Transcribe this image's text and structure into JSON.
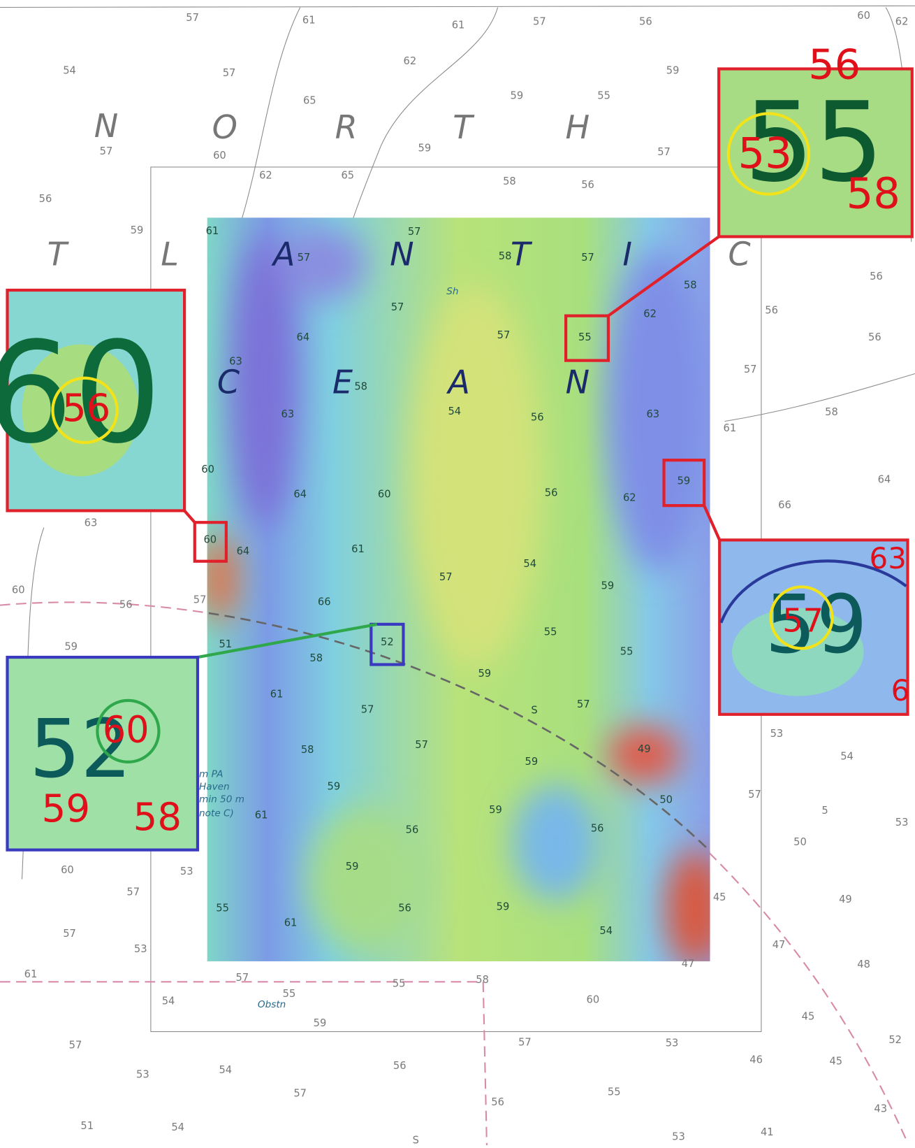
{
  "map": {
    "ocean_letters": [
      "N",
      "O",
      "R",
      "T",
      "H",
      "T",
      "L",
      "A",
      "N",
      "T",
      "I",
      "C",
      "C",
      "E",
      "A",
      "N"
    ],
    "soundings": [
      "57",
      "61",
      "61",
      "57",
      "56",
      "60",
      "62",
      "54",
      "57",
      "62",
      "59",
      "65",
      "59",
      "55",
      "57",
      "60",
      "59",
      "57",
      "62",
      "65",
      "58",
      "56",
      "56",
      "59",
      "61",
      "57",
      "57",
      "58",
      "57",
      "58",
      "56",
      "57",
      "57",
      "55",
      "62",
      "56",
      "56",
      "64",
      "63",
      "58",
      "57",
      "54",
      "56",
      "63",
      "58",
      "61",
      "63",
      "60",
      "64",
      "60",
      "56",
      "59",
      "62",
      "64",
      "66",
      "63",
      "60",
      "64",
      "61",
      "54",
      "57",
      "59",
      "60",
      "56",
      "57",
      "66",
      "52",
      "55",
      "59",
      "51",
      "58",
      "55",
      "59",
      "61",
      "57",
      "S",
      "57",
      "53",
      "54",
      "57",
      "58",
      "49",
      "59",
      "59",
      "50",
      "57",
      "5",
      "53",
      "59",
      "61",
      "56",
      "56",
      "50",
      "60",
      "53",
      "59",
      "57",
      "45",
      "49",
      "55",
      "56",
      "59",
      "57",
      "61",
      "54",
      "47",
      "53",
      "61",
      "47",
      "48",
      "57",
      "55",
      "58",
      "55",
      "54",
      "60",
      "45",
      "59",
      "57",
      "57",
      "53",
      "52",
      "46",
      "45",
      "53",
      "54",
      "56",
      "57",
      "55",
      "56",
      "43",
      "51",
      "54",
      "S",
      "53",
      "41"
    ],
    "notes": [
      "Sh",
      "Obstn",
      "m PA",
      "Haven",
      "min 50 m",
      "note C)"
    ]
  },
  "insets": [
    {
      "labels": [
        "60",
        "56"
      ]
    },
    {
      "labels": [
        "56",
        "55",
        "53",
        "58"
      ]
    },
    {
      "labels": [
        "59",
        "57",
        "63",
        "6"
      ]
    },
    {
      "labels": [
        "52",
        "60",
        "59",
        "58"
      ]
    }
  ]
}
